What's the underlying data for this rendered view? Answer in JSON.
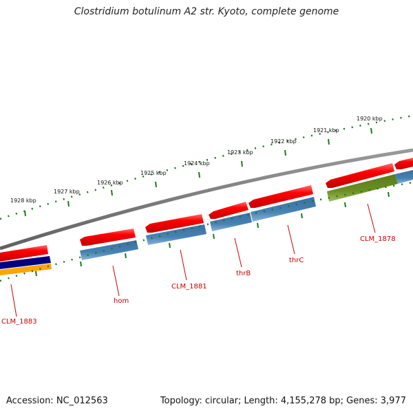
{
  "title": "Clostridium botulinum A2 str. Kyoto, complete genome",
  "footer": {
    "accession": "Accession: NC_012563",
    "summary": "Topology: circular; Length: 4,155,278 bp; Genes: 3,977"
  },
  "scale": {
    "unit": "kbp",
    "tick_labels": [
      "1928 kbp",
      "1927 kbp",
      "1926 kbp",
      "1925 kbp",
      "1924 kbp",
      "1923 kbp",
      "1922 kbp",
      "1921 kbp",
      "1920 kbp"
    ]
  },
  "gene_labels": [
    "CLM_1883",
    "hom",
    "CLM_1881",
    "thrB",
    "thrC",
    "CLM_1878"
  ],
  "colors": {
    "backbone": "#808080",
    "cds_forward": "#ff0000",
    "track_blue": "#4682b4",
    "track_olive": "#6b8e23",
    "track_navy": "#000080",
    "track_orange": "#ffa500",
    "ticks": "#1a7a1a",
    "label": "#cc0000"
  }
}
